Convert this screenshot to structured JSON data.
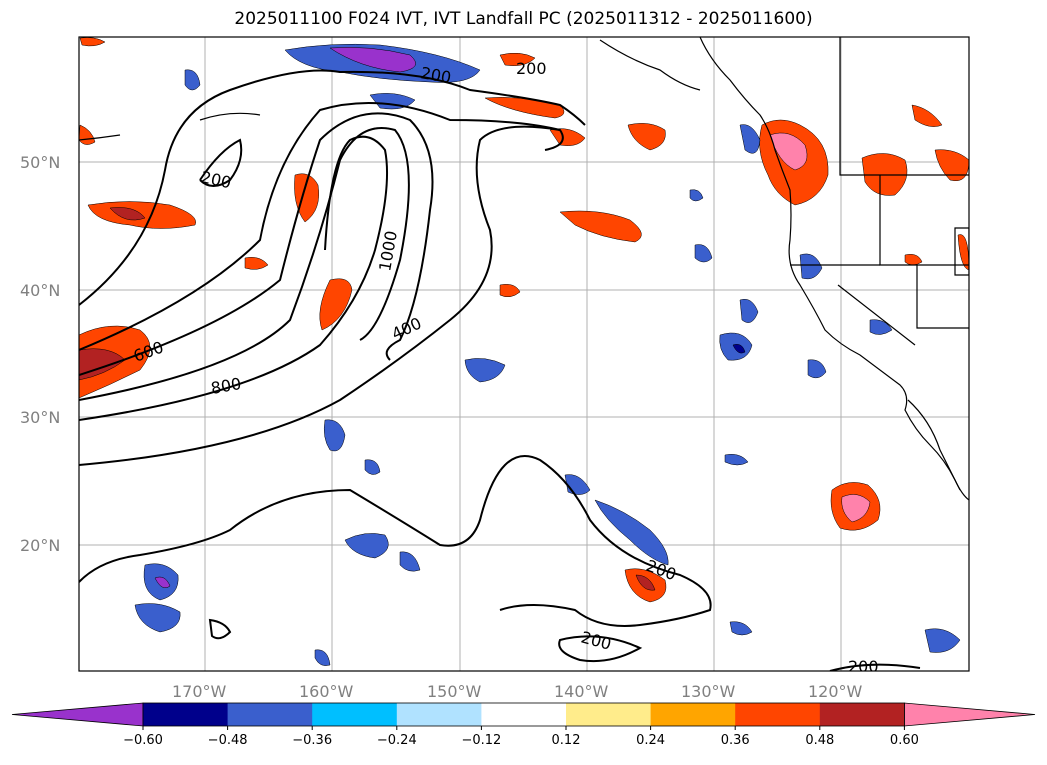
{
  "title": "2025011100 F024 IVT, IVT Landfall PC (2025011312 - 2025011600)",
  "lat_labels": [
    "50°N",
    "40°N",
    "30°N",
    "20°N"
  ],
  "lon_labels": [
    "170°W",
    "160°W",
    "150°W",
    "140°W",
    "130°W",
    "120°W"
  ],
  "colorbar": {
    "ticks": [
      "−0.60",
      "−0.48",
      "−0.36",
      "−0.24",
      "−0.12",
      "0.12",
      "0.24",
      "0.36",
      "0.48",
      "0.60"
    ],
    "colors": [
      "#9932cc",
      "#00008b",
      "#3a5fcd",
      "#00bfff",
      "#b0e2ff",
      "#ffffff",
      "#ffec8b",
      "#ffa500",
      "#ff4500",
      "#b22222",
      "#ff82ab"
    ]
  },
  "contour_labels": [
    "200",
    "200",
    "1000",
    "600",
    "800",
    "400",
    "200",
    "200",
    "200",
    "200"
  ]
}
